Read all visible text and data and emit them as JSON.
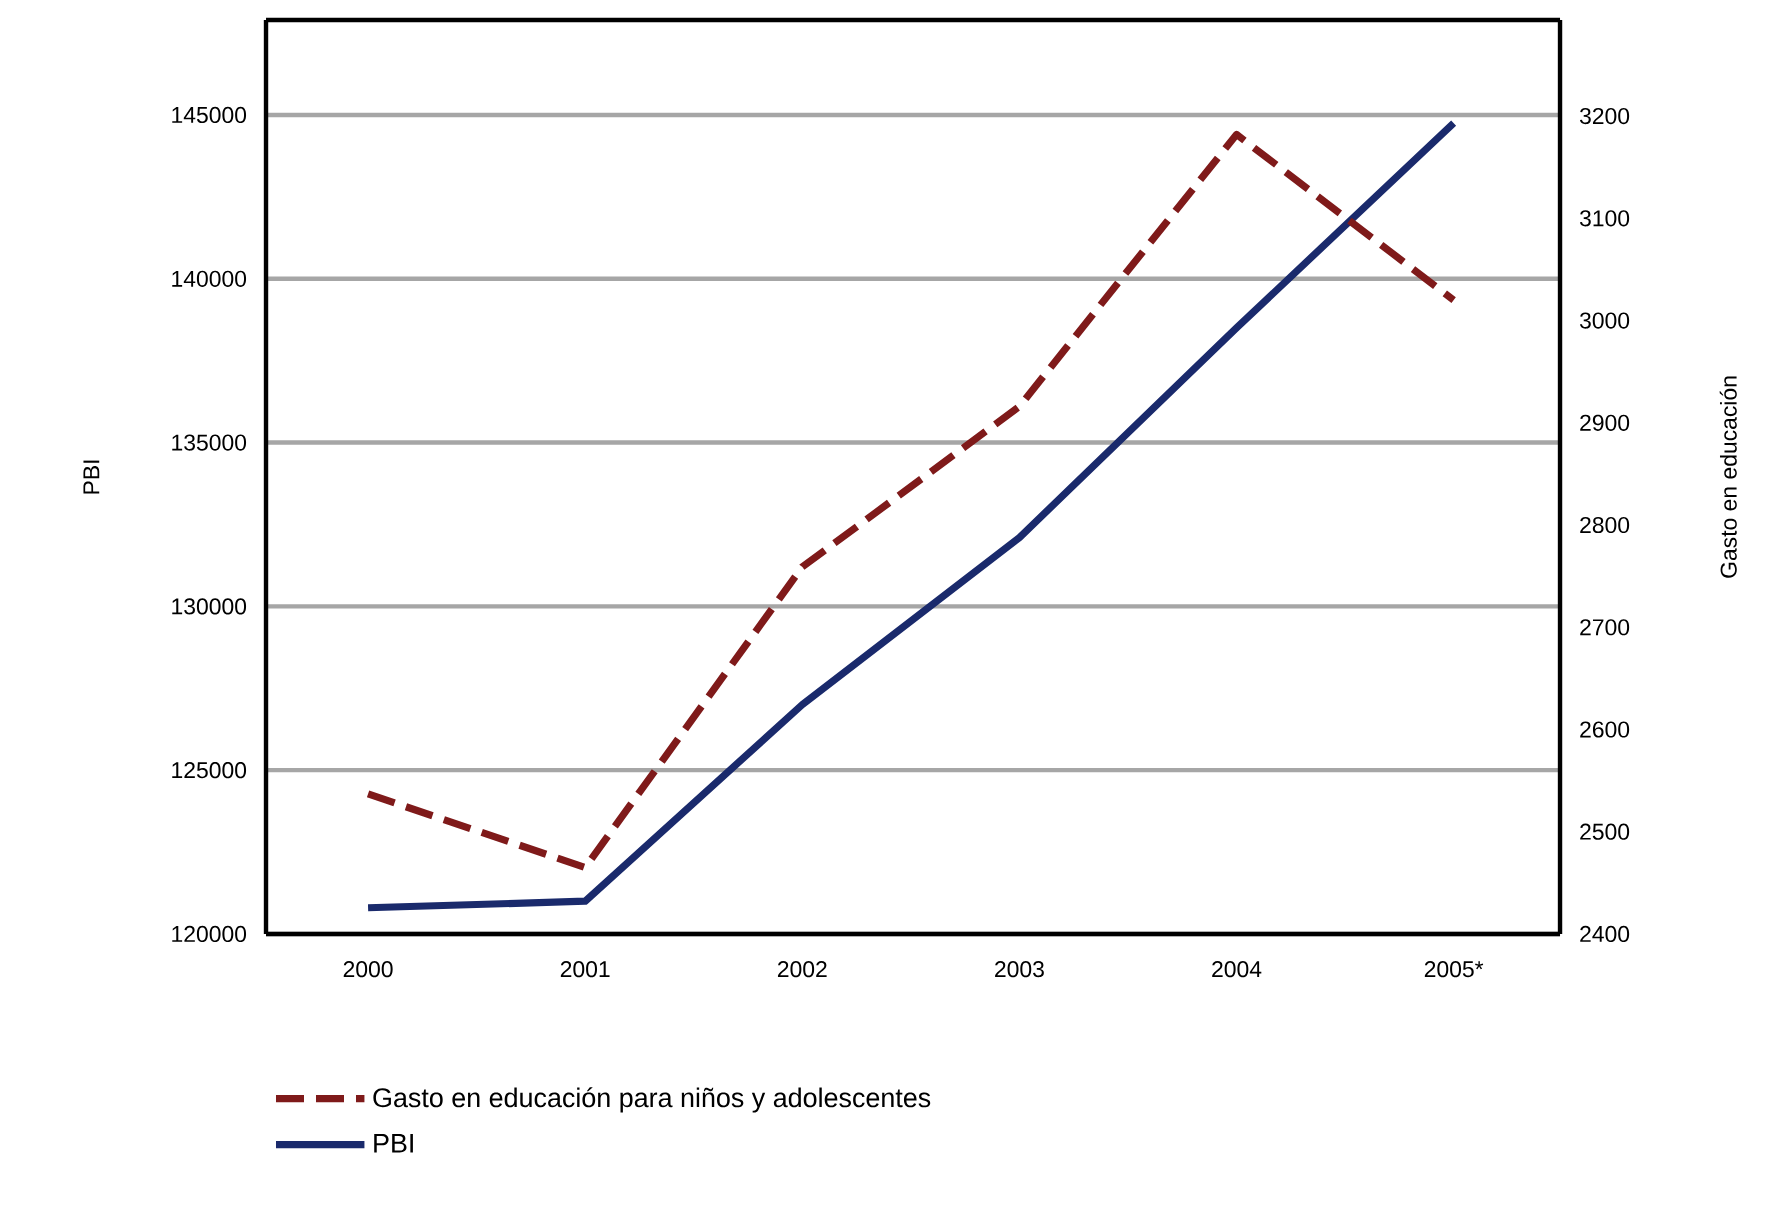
{
  "chart_data": {
    "type": "line",
    "categories": [
      "2000",
      "2001",
      "2002",
      "2003",
      "2004",
      "2005*"
    ],
    "ylabel": "PBI",
    "y2label": "Gasto en educación",
    "ylim": [
      120000,
      147900
    ],
    "yticks": [
      120000,
      125000,
      130000,
      135000,
      140000,
      145000
    ],
    "y2lim": [
      2400,
      3294
    ],
    "y2ticks": [
      2400,
      2500,
      2600,
      2700,
      2800,
      2900,
      3000,
      3100,
      3200
    ],
    "grid": "y",
    "legend": "bottom",
    "series": [
      {
        "name": "Gasto en educación para niños y adolescentes",
        "color": "#7f1a1a",
        "axis": "y2",
        "line_style": "dashed",
        "values": [
          2537,
          2465,
          2759,
          2916,
          3182,
          3020
        ]
      },
      {
        "name": "PBI",
        "color": "#1a2a6c",
        "axis": "y",
        "line_style": "solid",
        "values": [
          120800,
          121000,
          127000,
          132100,
          138500,
          144750
        ]
      }
    ]
  }
}
